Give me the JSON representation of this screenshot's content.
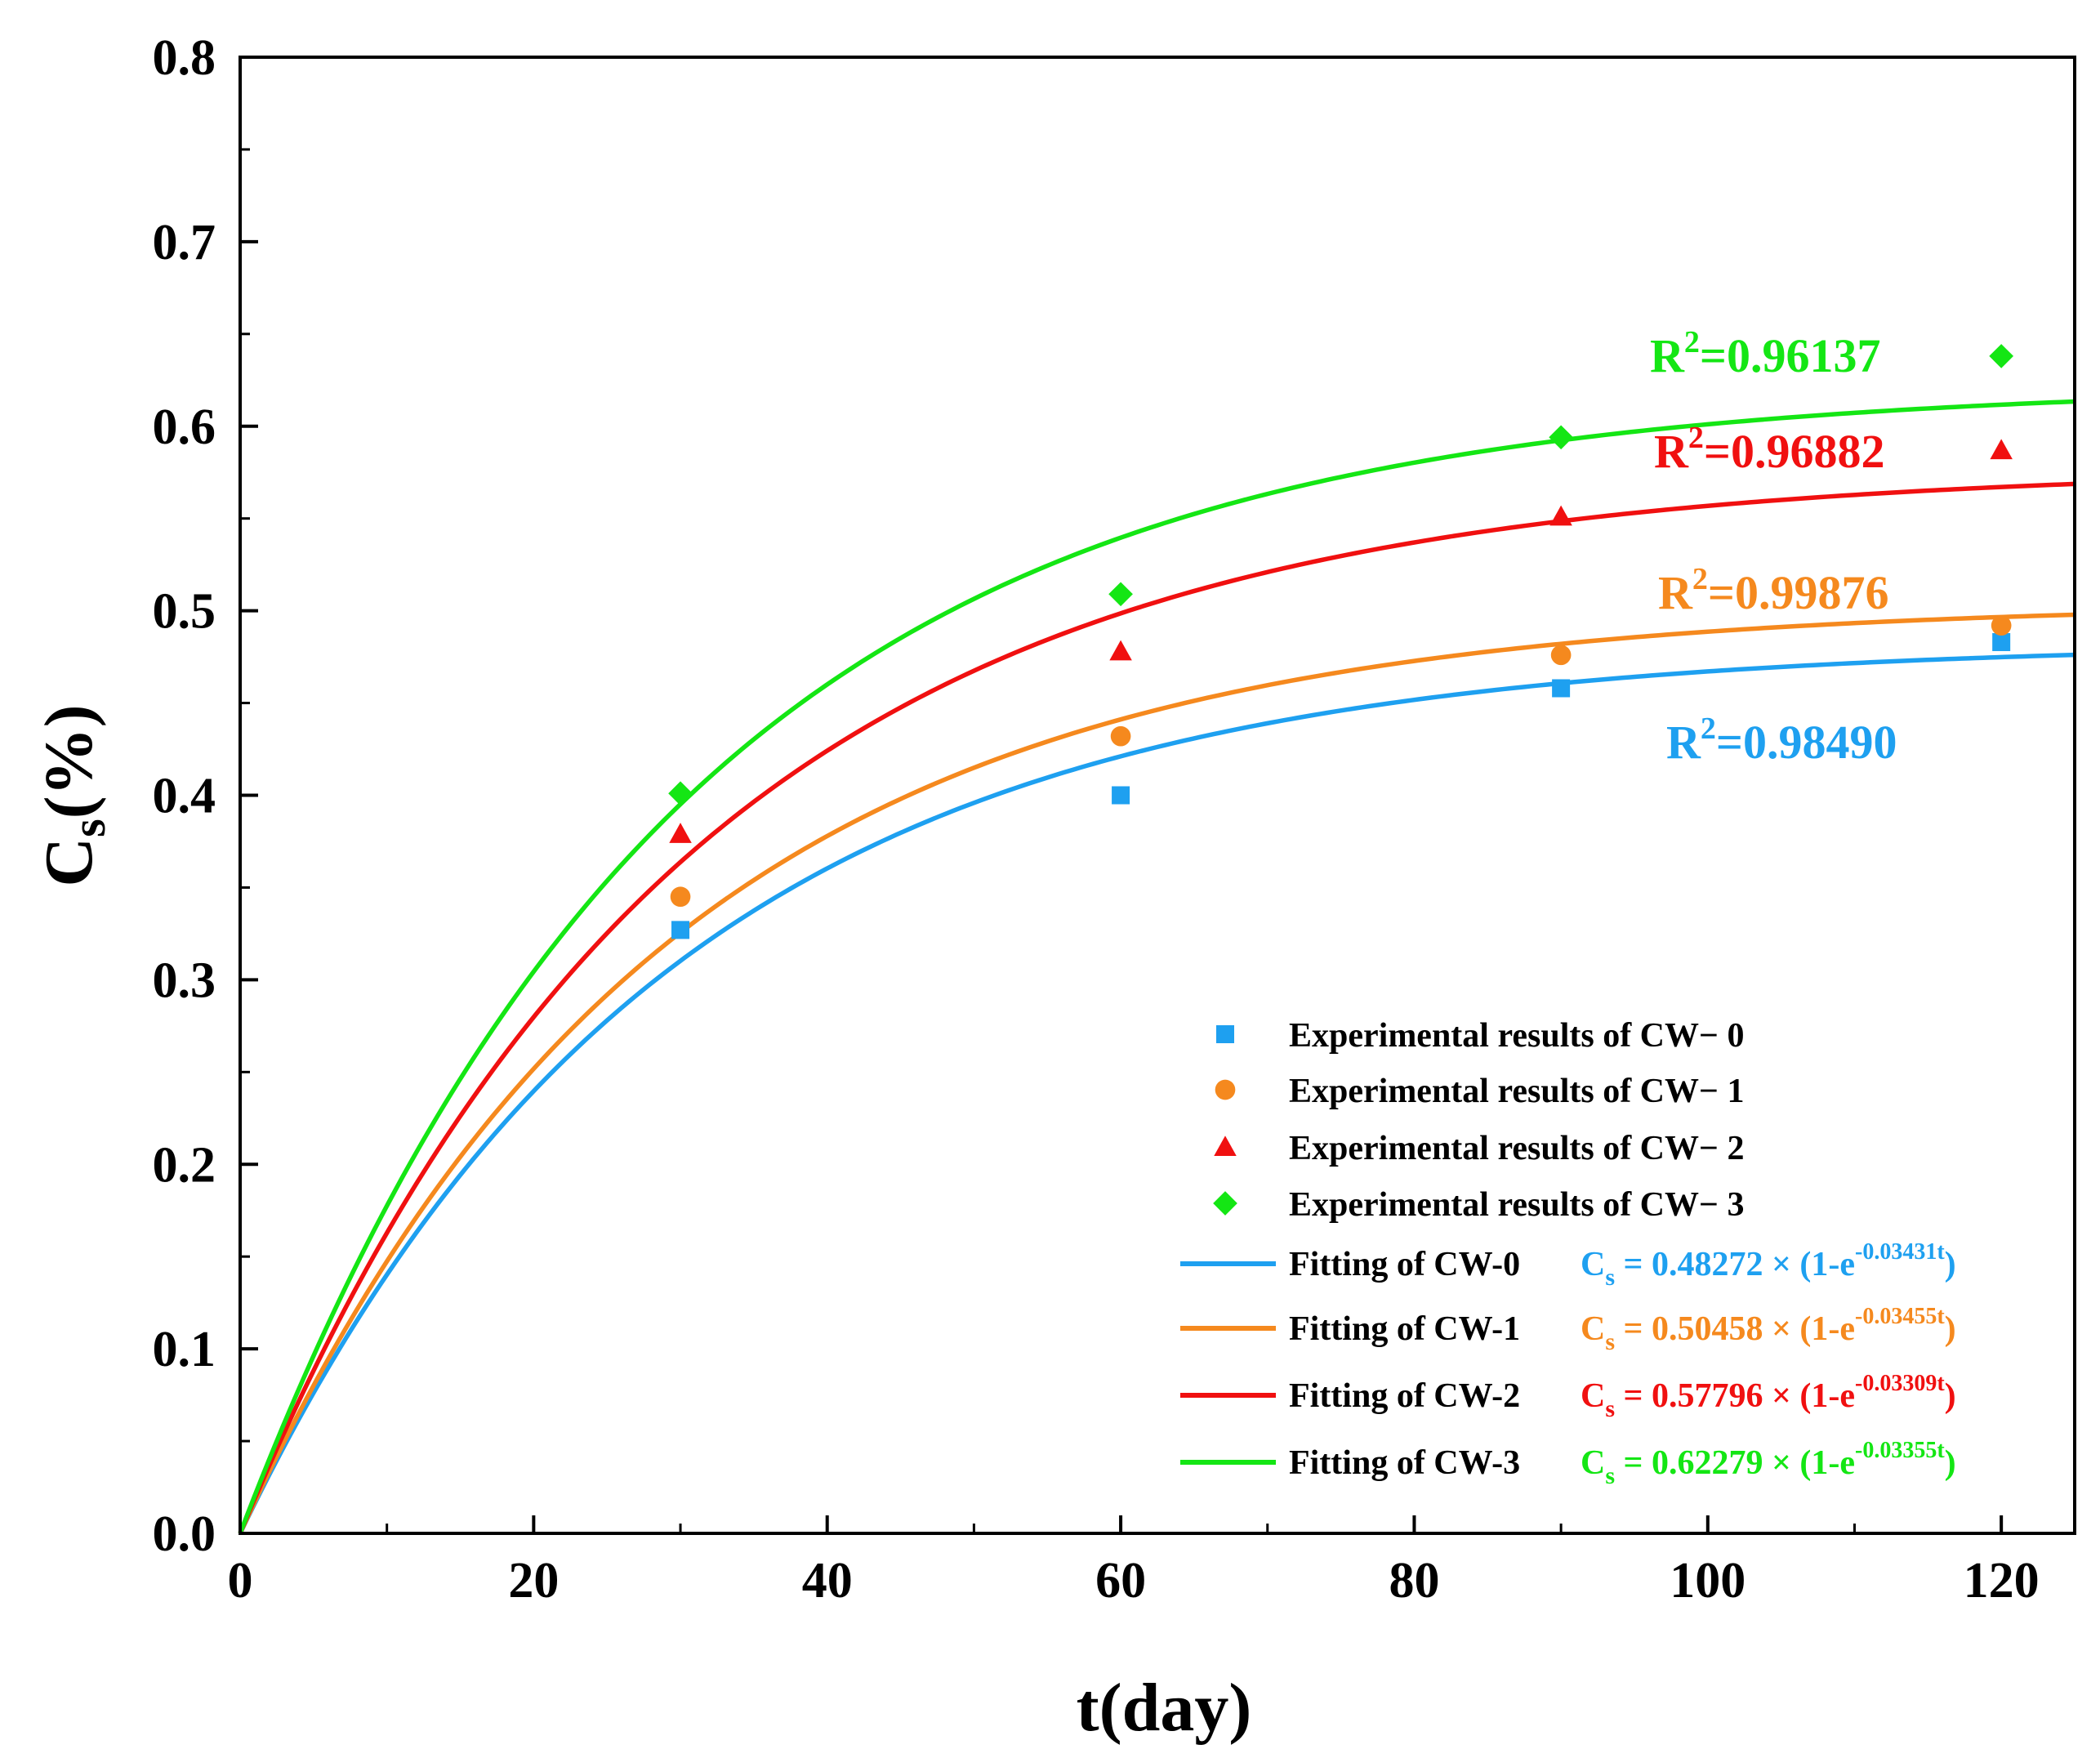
{
  "chart_data": {
    "type": "scatter",
    "title": "",
    "xlabel": "t(day)",
    "ylabel_main": "C",
    "ylabel_sub": "s",
    "ylabel_suffix": "(%)",
    "xlim": [
      0,
      125
    ],
    "ylim": [
      0.0,
      0.8
    ],
    "x_ticks": [
      {
        "value": 0,
        "label": "0"
      },
      {
        "value": 20,
        "label": "20"
      },
      {
        "value": 40,
        "label": "40"
      },
      {
        "value": 60,
        "label": "60"
      },
      {
        "value": 80,
        "label": "80"
      },
      {
        "value": 100,
        "label": "100"
      },
      {
        "value": 120,
        "label": "120"
      }
    ],
    "x_minor_step": 10,
    "y_ticks": [
      {
        "value": 0.0,
        "label": "0.0"
      },
      {
        "value": 0.1,
        "label": "0.1"
      },
      {
        "value": 0.2,
        "label": "0.2"
      },
      {
        "value": 0.3,
        "label": "0.3"
      },
      {
        "value": 0.4,
        "label": "0.4"
      },
      {
        "value": 0.5,
        "label": "0.5"
      },
      {
        "value": 0.6,
        "label": "0.6"
      },
      {
        "value": 0.7,
        "label": "0.7"
      },
      {
        "value": 0.8,
        "label": "0.8"
      }
    ],
    "y_minor_step": 0.05,
    "grid": false,
    "legend_position": "bottom-right",
    "series": [
      {
        "id": "cw0",
        "color": "#1ea0f0",
        "marker": "square",
        "points_label": "Experimental results of CW− 0",
        "points": [
          {
            "x": 30,
            "y": 0.327
          },
          {
            "x": 60,
            "y": 0.4
          },
          {
            "x": 90,
            "y": 0.458
          },
          {
            "x": 120,
            "y": 0.483
          }
        ],
        "fit_label": "Fitting of CW-0",
        "fit": {
          "a": 0.48272,
          "k": 0.03431
        },
        "eq_prefix": "C",
        "eq_sub": "s",
        "eq_body": " = 0.48272 × (1-e",
        "eq_exp": "-0.03431t",
        "eq_close": ")",
        "r2_label": "R",
        "r2_sup": "2",
        "r2_value": "=0.98490"
      },
      {
        "id": "cw1",
        "color": "#f5891e",
        "marker": "circle",
        "points_label": "Experimental results of CW− 1",
        "points": [
          {
            "x": 30,
            "y": 0.345
          },
          {
            "x": 60,
            "y": 0.432
          },
          {
            "x": 90,
            "y": 0.476
          },
          {
            "x": 120,
            "y": 0.492
          }
        ],
        "fit_label": "Fitting of CW-1",
        "fit": {
          "a": 0.50458,
          "k": 0.03455
        },
        "eq_prefix": "C",
        "eq_sub": "s",
        "eq_body": " = 0.50458 × (1-e",
        "eq_exp": "-0.03455t",
        "eq_close": ")",
        "r2_label": "R",
        "r2_sup": "2",
        "r2_value": "=0.99876"
      },
      {
        "id": "cw2",
        "color": "#f01010",
        "marker": "triangle",
        "points_label": "Experimental results of CW− 2",
        "points": [
          {
            "x": 30,
            "y": 0.379
          },
          {
            "x": 60,
            "y": 0.478
          },
          {
            "x": 90,
            "y": 0.551
          },
          {
            "x": 120,
            "y": 0.587
          }
        ],
        "fit_label": "Fitting of CW-2",
        "fit": {
          "a": 0.57796,
          "k": 0.03309
        },
        "eq_prefix": "C",
        "eq_sub": "s",
        "eq_body": " = 0.57796 × (1-e",
        "eq_exp": "-0.03309t",
        "eq_close": ")",
        "r2_label": "R",
        "r2_sup": "2",
        "r2_value": "=0.96882"
      },
      {
        "id": "cw3",
        "color": "#14e614",
        "marker": "diamond",
        "points_label": "Experimental results of CW− 3",
        "points": [
          {
            "x": 30,
            "y": 0.401
          },
          {
            "x": 60,
            "y": 0.509
          },
          {
            "x": 90,
            "y": 0.594
          },
          {
            "x": 120,
            "y": 0.638
          }
        ],
        "fit_label": "Fitting of CW-3",
        "fit": {
          "a": 0.62279,
          "k": 0.03355
        },
        "eq_prefix": "C",
        "eq_sub": "s",
        "eq_body": " = 0.62279 × (1-e",
        "eq_exp": "-0.03355t",
        "eq_close": ")",
        "r2_label": "R",
        "r2_sup": "2",
        "r2_value": "=0.96137"
      }
    ]
  }
}
